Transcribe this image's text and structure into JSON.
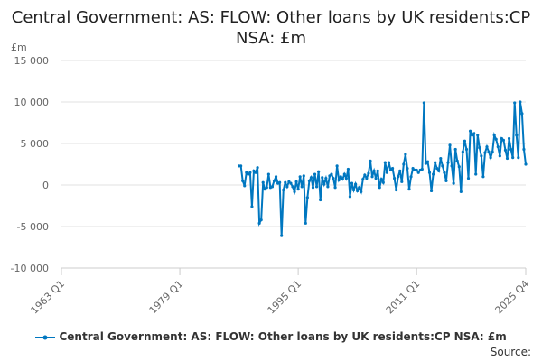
{
  "chart_data": {
    "type": "line",
    "title": "Central Government: AS: FLOW: Other loans by UK residents:CP NSA: £m",
    "ylabel": "£m",
    "ylim": [
      -10000,
      15000
    ],
    "yticks": [
      15000,
      10000,
      5000,
      0,
      -5000,
      -10000
    ],
    "ytick_labels": [
      "15 000",
      "10 000",
      "5 000",
      "0",
      "-5 000",
      "-10 000"
    ],
    "xrange": [
      "1963 Q1",
      "2025 Q4"
    ],
    "xtick_labels": [
      "1963 Q1",
      "1979 Q1",
      "1995 Q1",
      "2011 Q1",
      "2025 Q4"
    ],
    "grid": true,
    "legend_position": "bottom",
    "color": "#0077c0",
    "series": [
      {
        "name": "Central Government: AS: FLOW: Other loans by UK residents:CP NSA: £m",
        "start": "1987 Q1",
        "frequency": "quarterly",
        "values": [
          2300,
          2300,
          500,
          -100,
          1500,
          1300,
          1500,
          -2600,
          1700,
          1500,
          2100,
          -4600,
          -4200,
          300,
          -500,
          -300,
          1300,
          -300,
          -200,
          500,
          1000,
          200,
          300,
          -6100,
          -600,
          300,
          -200,
          400,
          200,
          -200,
          -800,
          400,
          -500,
          1000,
          -200,
          1100,
          -4600,
          -1500,
          500,
          900,
          -300,
          1300,
          -200,
          1600,
          -1800,
          900,
          100,
          800,
          -200,
          1100,
          1300,
          800,
          -300,
          2300,
          600,
          1000,
          700,
          1300,
          800,
          1900,
          -1400,
          200,
          -600,
          100,
          -700,
          -300,
          -800,
          700,
          1200,
          800,
          1400,
          2900,
          1000,
          1700,
          800,
          1700,
          -300,
          700,
          300,
          2700,
          1500,
          2700,
          1800,
          2000,
          800,
          -600,
          1000,
          1700,
          400,
          2500,
          3700,
          2000,
          -500,
          1000,
          2000,
          1800,
          1800,
          1500,
          1800,
          1900,
          9900,
          2600,
          2800,
          1500,
          -700,
          1300,
          2700,
          2000,
          1700,
          3200,
          2300,
          1500,
          500,
          2700,
          4800,
          2300,
          200,
          4300,
          2900,
          2200,
          -800,
          4000,
          5300,
          4300,
          800,
          6500,
          6000,
          6200,
          1300,
          6000,
          4500,
          3500,
          1000,
          3900,
          4600,
          4000,
          3300,
          4000,
          6000,
          5500,
          4600,
          3500,
          5600,
          5400,
          4200,
          3200,
          5600,
          4300,
          3300,
          9900,
          6000,
          3300,
          10000,
          8600,
          4300,
          2500
        ]
      }
    ]
  },
  "legend_label": "Central Government: AS: FLOW: Other loans by UK residents:CP NSA: £m",
  "source_label": "Source:"
}
